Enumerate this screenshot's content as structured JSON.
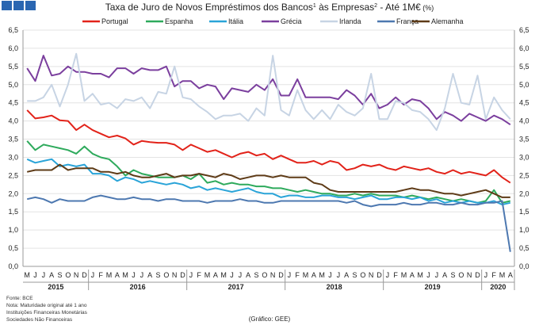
{
  "chart_data": {
    "type": "line",
    "title_main": "Taxa de Juro de Novos Empréstimos dos Bancos",
    "title_sup1": "1",
    "title_mid": " às Empresas",
    "title_sup2": "2",
    "title_tail": " -  Até 1M€",
    "title_unit": " (%)",
    "ylim": [
      0,
      6.5
    ],
    "y_ticks": [
      "0,0",
      "0,5",
      "1,0",
      "1,5",
      "2,0",
      "2,5",
      "3,0",
      "3,5",
      "4,0",
      "4,5",
      "5,0",
      "5,5",
      "6,0",
      "6,5"
    ],
    "grid": true,
    "legend_position": "top",
    "month_letters": [
      "M",
      "J",
      "J",
      "A",
      "S",
      "O",
      "N",
      "D",
      "J",
      "F",
      "M",
      "A",
      "M",
      "J",
      "J",
      "A",
      "S",
      "O",
      "N",
      "D",
      "J",
      "F",
      "M",
      "A",
      "M",
      "J",
      "J",
      "A",
      "S",
      "O",
      "N",
      "D",
      "J",
      "F",
      "M",
      "A",
      "M",
      "J",
      "J",
      "A",
      "S",
      "O",
      "N",
      "D",
      "J",
      "F",
      "M",
      "A",
      "M",
      "J",
      "J",
      "A",
      "S",
      "O",
      "N",
      "D",
      "J",
      "F",
      "M",
      "A"
    ],
    "years": [
      {
        "label": "2015",
        "start": 0,
        "end": 7
      },
      {
        "label": "2016",
        "start": 8,
        "end": 19
      },
      {
        "label": "2017",
        "start": 20,
        "end": 31
      },
      {
        "label": "2018",
        "start": 32,
        "end": 43
      },
      {
        "label": "2019",
        "start": 44,
        "end": 55
      },
      {
        "label": "2020",
        "start": 56,
        "end": 59
      }
    ],
    "series": [
      {
        "name": "Portugal",
        "color": "#e2231a",
        "values": [
          4.3,
          4.07,
          4.1,
          4.15,
          4.02,
          4.0,
          3.75,
          3.9,
          3.75,
          3.65,
          3.55,
          3.6,
          3.52,
          3.35,
          3.45,
          3.42,
          3.4,
          3.4,
          3.35,
          3.2,
          3.35,
          3.25,
          3.15,
          3.2,
          3.1,
          3.0,
          3.1,
          3.15,
          3.05,
          3.1,
          2.95,
          3.05,
          2.95,
          2.85,
          2.85,
          2.9,
          2.8,
          2.9,
          2.85,
          2.65,
          2.7,
          2.8,
          2.75,
          2.8,
          2.7,
          2.65,
          2.75,
          2.7,
          2.65,
          2.7,
          2.6,
          2.55,
          2.65,
          2.55,
          2.6,
          2.55,
          2.5,
          2.65,
          2.45,
          2.3
        ]
      },
      {
        "name": "Espanha",
        "color": "#2eaa5c",
        "values": [
          3.45,
          3.2,
          3.35,
          3.3,
          3.25,
          3.2,
          3.1,
          3.3,
          3.1,
          3.0,
          2.95,
          2.75,
          2.5,
          2.65,
          2.55,
          2.5,
          2.45,
          2.45,
          2.45,
          2.5,
          2.4,
          2.55,
          2.3,
          2.35,
          2.25,
          2.3,
          2.25,
          2.25,
          2.2,
          2.2,
          2.15,
          2.15,
          2.1,
          2.05,
          2.1,
          2.05,
          2.0,
          2.0,
          1.95,
          1.95,
          2.0,
          1.95,
          2.0,
          1.95,
          1.95,
          1.95,
          1.9,
          1.95,
          1.9,
          1.85,
          1.9,
          1.85,
          1.8,
          1.85,
          1.8,
          1.75,
          1.8,
          2.1,
          1.75,
          1.8
        ]
      },
      {
        "name": "Itália",
        "color": "#2aa4d8",
        "values": [
          2.95,
          2.85,
          2.9,
          2.95,
          2.75,
          2.8,
          2.75,
          2.8,
          2.55,
          2.55,
          2.5,
          2.35,
          2.45,
          2.4,
          2.3,
          2.35,
          2.3,
          2.25,
          2.3,
          2.25,
          2.15,
          2.2,
          2.1,
          2.15,
          2.1,
          2.05,
          2.1,
          2.15,
          2.05,
          2.0,
          2.0,
          1.9,
          1.95,
          1.95,
          1.9,
          1.9,
          1.95,
          1.95,
          1.9,
          1.9,
          1.85,
          1.9,
          1.95,
          1.85,
          1.85,
          1.9,
          1.9,
          1.85,
          1.9,
          1.8,
          1.85,
          1.75,
          1.8,
          1.75,
          1.8,
          1.75,
          1.75,
          1.8,
          1.7,
          1.75
        ]
      },
      {
        "name": "Grécia",
        "color": "#7b3f9e",
        "values": [
          5.45,
          5.1,
          5.8,
          5.25,
          5.3,
          5.5,
          5.35,
          5.35,
          5.3,
          5.3,
          5.2,
          5.45,
          5.45,
          5.3,
          5.45,
          5.4,
          5.4,
          5.5,
          4.95,
          5.1,
          5.1,
          4.9,
          5.0,
          4.95,
          4.6,
          4.9,
          4.85,
          4.8,
          5.0,
          4.85,
          5.15,
          4.7,
          4.7,
          5.15,
          4.65,
          4.65,
          4.65,
          4.65,
          4.6,
          4.85,
          4.7,
          4.45,
          4.75,
          4.35,
          4.45,
          4.65,
          4.45,
          4.6,
          4.55,
          4.35,
          4.05,
          4.25,
          4.15,
          4.0,
          4.2,
          4.1,
          4.0,
          4.15,
          4.05,
          3.9
        ]
      },
      {
        "name": "Irlanda",
        "color": "#c7d4e4",
        "values": [
          4.55,
          4.55,
          4.65,
          5.0,
          4.4,
          5.0,
          5.85,
          4.55,
          4.75,
          4.45,
          4.5,
          4.35,
          4.6,
          4.55,
          4.65,
          4.35,
          4.8,
          4.75,
          5.5,
          4.65,
          4.6,
          4.4,
          4.25,
          4.05,
          4.15,
          4.15,
          4.2,
          4.0,
          4.35,
          4.15,
          5.8,
          4.3,
          4.15,
          4.85,
          4.3,
          4.05,
          4.3,
          4.05,
          4.45,
          4.25,
          4.15,
          4.35,
          5.3,
          4.05,
          4.05,
          4.55,
          4.5,
          4.3,
          4.25,
          4.05,
          3.75,
          4.35,
          5.3,
          4.5,
          4.45,
          5.25,
          4.05,
          4.65,
          4.3,
          4.05
        ]
      },
      {
        "name": "França",
        "color": "#4d78b0",
        "values": [
          1.85,
          1.9,
          1.85,
          1.75,
          1.85,
          1.8,
          1.8,
          1.8,
          1.9,
          1.95,
          1.9,
          1.85,
          1.85,
          1.9,
          1.85,
          1.85,
          1.8,
          1.85,
          1.85,
          1.8,
          1.8,
          1.8,
          1.75,
          1.8,
          1.8,
          1.8,
          1.85,
          1.8,
          1.8,
          1.75,
          1.75,
          1.8,
          1.8,
          1.8,
          1.8,
          1.8,
          1.8,
          1.8,
          1.8,
          1.75,
          1.8,
          1.7,
          1.65,
          1.7,
          1.7,
          1.7,
          1.75,
          1.7,
          1.7,
          1.75,
          1.75,
          1.7,
          1.7,
          1.75,
          1.7,
          1.7,
          1.75,
          1.75,
          1.8,
          0.4
        ]
      },
      {
        "name": "Alemanha",
        "color": "#5e3b17",
        "values": [
          2.6,
          2.65,
          2.65,
          2.65,
          2.8,
          2.65,
          2.7,
          2.7,
          2.7,
          2.6,
          2.6,
          2.55,
          2.6,
          2.5,
          2.45,
          2.45,
          2.5,
          2.55,
          2.45,
          2.5,
          2.5,
          2.55,
          2.5,
          2.45,
          2.55,
          2.5,
          2.4,
          2.45,
          2.5,
          2.5,
          2.45,
          2.5,
          2.45,
          2.45,
          2.45,
          2.3,
          2.25,
          2.1,
          2.05,
          2.05,
          2.05,
          2.05,
          2.05,
          2.05,
          2.05,
          2.05,
          2.1,
          2.15,
          2.1,
          2.1,
          2.05,
          2.0,
          2.0,
          1.95,
          2.0,
          2.05,
          2.1,
          2.0,
          1.9,
          1.9
        ]
      }
    ]
  },
  "footer": {
    "notes": [
      "Fonte: BCE",
      "Nota: Maturidade original até 1 ano",
      "Instituições Financeiras Monetárias",
      "Sociedades Não Financeiras"
    ],
    "credit": "(Gráfico: GEE)"
  }
}
